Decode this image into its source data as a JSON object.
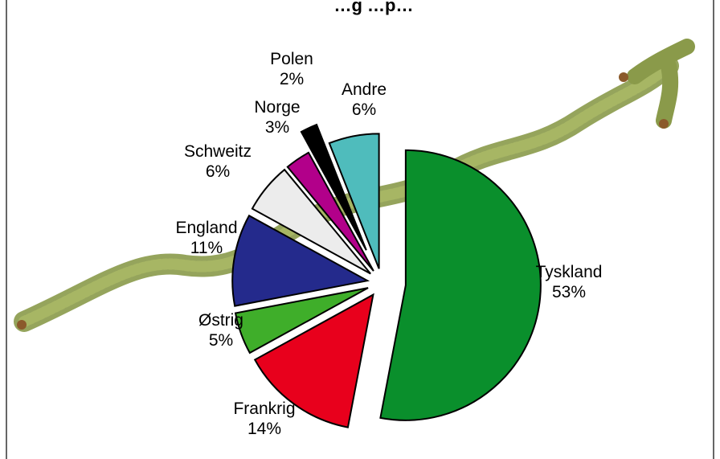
{
  "chart_data": {
    "type": "pie",
    "title": "…g …p…",
    "slices": [
      {
        "label": "Tyskland",
        "pct_label": "53%",
        "value": 53,
        "color": "#0a8f2c"
      },
      {
        "label": "Frankrig",
        "pct_label": "14%",
        "value": 14,
        "color": "#e8001c"
      },
      {
        "label": "Østrig",
        "pct_label": "5%",
        "value": 5,
        "color": "#3fae2a"
      },
      {
        "label": "England",
        "pct_label": "11%",
        "value": 11,
        "color": "#242a8c"
      },
      {
        "label": "Schweitz",
        "pct_label": "6%",
        "value": 6,
        "color": "#ececec"
      },
      {
        "label": "Norge",
        "pct_label": "3%",
        "value": 3,
        "color": "#b2008a"
      },
      {
        "label": "Polen",
        "pct_label": "2%",
        "value": 2,
        "color": "#000000"
      },
      {
        "label": "Andre",
        "pct_label": "6%",
        "value": 6,
        "color": "#4fbcbc"
      }
    ],
    "background_image": "spruce-branch-arrow"
  }
}
